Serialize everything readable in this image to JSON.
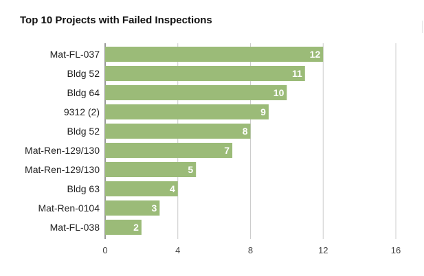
{
  "chart_data": {
    "type": "bar",
    "orientation": "horizontal",
    "title": "Top 10 Projects with Failed Inspections",
    "categories": [
      "Mat-FL-037",
      "Bldg 52",
      "Bldg 64",
      "9312 (2)",
      "Bldg 52",
      "Mat-Ren-129/130",
      "Mat-Ren-129/130",
      "Bldg 63",
      "Mat-Ren-0104",
      "Mat-FL-038"
    ],
    "values": [
      12,
      11,
      10,
      9,
      8,
      7,
      5,
      4,
      3,
      2
    ],
    "xlim": [
      0,
      16
    ],
    "xticks": [
      0,
      4,
      8,
      12,
      16
    ],
    "grid": true,
    "legend": "none",
    "bar_color": "#9bbb78",
    "data_label_color": "#ffffff"
  }
}
